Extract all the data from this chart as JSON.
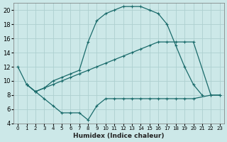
{
  "xlabel": "Humidex (Indice chaleur)",
  "bg_color": "#cce8e8",
  "grid_color": "#add0d0",
  "line_color": "#1a6b6b",
  "xlim": [
    -0.5,
    23.5
  ],
  "ylim": [
    4,
    21
  ],
  "xticks": [
    0,
    1,
    2,
    3,
    4,
    5,
    6,
    7,
    8,
    9,
    10,
    11,
    12,
    13,
    14,
    15,
    16,
    17,
    18,
    19,
    20,
    21,
    22,
    23
  ],
  "yticks": [
    4,
    6,
    8,
    10,
    12,
    14,
    16,
    18,
    20
  ],
  "series": [
    {
      "x": [
        0,
        1,
        2,
        3,
        4,
        5,
        6,
        7,
        8,
        9,
        10,
        11,
        12,
        13,
        14,
        15,
        16,
        17,
        18,
        19,
        20,
        21
      ],
      "y": [
        12,
        9.5,
        8.5,
        9.0,
        10.0,
        10.5,
        11.0,
        11.5,
        15.5,
        18.5,
        19.5,
        20.0,
        20.5,
        20.5,
        20.5,
        20.0,
        19.5,
        18.0,
        15.0,
        12.0,
        9.5,
        8.0
      ]
    },
    {
      "x": [
        1,
        2,
        3,
        4,
        5,
        6,
        7,
        8,
        9,
        10,
        11,
        12,
        13,
        14,
        15,
        16,
        17,
        18,
        19,
        20,
        22,
        23
      ],
      "y": [
        9.5,
        8.5,
        9.0,
        9.5,
        10.0,
        10.5,
        11.0,
        11.5,
        12.0,
        12.5,
        13.0,
        13.5,
        14.0,
        14.5,
        15.0,
        15.5,
        15.5,
        15.5,
        15.5,
        15.5,
        8.0,
        8.0
      ]
    },
    {
      "x": [
        1,
        2,
        3,
        4,
        5,
        6,
        7,
        8,
        9,
        10,
        11,
        12,
        13,
        14,
        15,
        16,
        17,
        18,
        19,
        20,
        22,
        23
      ],
      "y": [
        9.5,
        8.5,
        7.5,
        6.5,
        5.5,
        5.5,
        5.5,
        4.5,
        6.5,
        7.5,
        7.5,
        7.5,
        7.5,
        7.5,
        7.5,
        7.5,
        7.5,
        7.5,
        7.5,
        7.5,
        8.0,
        8.0
      ]
    }
  ]
}
